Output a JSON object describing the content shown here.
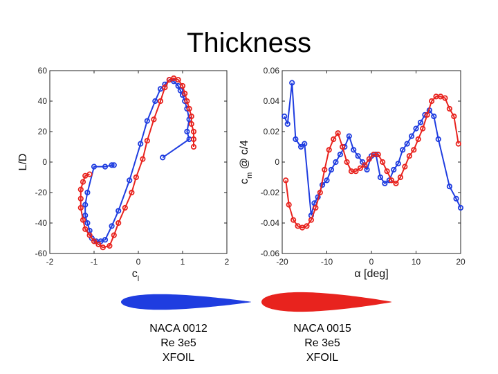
{
  "slide": {
    "title": "Thickness"
  },
  "chart_data": [
    {
      "type": "line",
      "panel": "left",
      "xlabel": "c",
      "xlabel_sub": "l",
      "ylabel": "L/D",
      "xlim": [
        -2,
        2
      ],
      "ylim": [
        -60,
        60
      ],
      "xticks": [
        -2,
        -1,
        0,
        1,
        2
      ],
      "yticks": [
        -60,
        -40,
        -20,
        0,
        20,
        40,
        60
      ],
      "series": [
        {
          "name": "NACA 0012",
          "color": "#1f3de0",
          "x": [
            0.55,
            1.15,
            1.1,
            1.15,
            1.1,
            1.05,
            1.0,
            0.95,
            0.9,
            0.8,
            0.7,
            0.6,
            0.5,
            0.38,
            0.2,
            0.05,
            -0.2,
            -0.45,
            -0.6,
            -0.75,
            -0.85,
            -0.95,
            -1.05,
            -1.1,
            -1.15,
            -1.2,
            -1.2,
            -1.15,
            -1.0,
            -0.75,
            -0.6,
            -0.55
          ],
          "y": [
            3,
            15,
            20,
            28,
            35,
            40,
            44,
            47,
            50,
            53,
            54,
            51,
            48,
            40,
            27,
            12,
            -12,
            -32,
            -42,
            -51,
            -52,
            -52,
            -50,
            -45,
            -40,
            -35,
            -28,
            -20,
            -3,
            -3,
            -2,
            -2
          ]
        },
        {
          "name": "NACA 0015",
          "color": "#e8231e",
          "x": [
            1.25,
            1.25,
            1.25,
            1.2,
            1.2,
            1.15,
            1.1,
            1.05,
            1.0,
            0.9,
            0.8,
            0.7,
            0.6,
            0.5,
            0.35,
            0.2,
            0.1,
            -0.05,
            -0.15,
            -0.3,
            -0.45,
            -0.55,
            -0.65,
            -0.8,
            -0.9,
            -1.0,
            -1.1,
            -1.2,
            -1.25,
            -1.3,
            -1.3,
            -1.3,
            -1.25,
            -1.2,
            -1.1
          ],
          "y": [
            10,
            15,
            20,
            25,
            30,
            35,
            40,
            45,
            50,
            54,
            55,
            54,
            49,
            40,
            28,
            14,
            2,
            -10,
            -20,
            -30,
            -40,
            -48,
            -55,
            -56,
            -54,
            -52,
            -48,
            -44,
            -38,
            -30,
            -24,
            -18,
            -13,
            -9,
            -8
          ]
        }
      ]
    },
    {
      "type": "line",
      "panel": "right",
      "xlabel": "α [deg]",
      "ylabel": "c",
      "ylabel_sub": "m",
      "ylabel_suffix": " @ c/4",
      "xlim": [
        -20,
        20
      ],
      "ylim": [
        -0.06,
        0.06
      ],
      "xticks": [
        -20,
        -10,
        0,
        10,
        20
      ],
      "yticks": [
        -0.06,
        -0.04,
        -0.02,
        0,
        0.02,
        0.04,
        0.06
      ],
      "ytick_labels": [
        "-0.06",
        "-0.04",
        "-0.02",
        "0",
        "0.02",
        "0.04",
        "0.06"
      ],
      "series": [
        {
          "name": "NACA 0012",
          "color": "#1f3de0",
          "x": [
            -19.5,
            -18.8,
            -17.8,
            -17,
            -15.8,
            -15,
            -13.5,
            -12.8,
            -12,
            -11,
            -10,
            -9,
            -8,
            -7,
            -6,
            -5,
            -4,
            -3,
            -2,
            -1,
            0,
            1,
            2,
            3,
            4,
            5,
            6,
            7,
            8,
            9,
            10,
            11,
            12,
            13,
            14,
            15,
            17.5,
            19,
            20
          ],
          "y": [
            0.03,
            0.025,
            0.052,
            0.015,
            0.01,
            0.012,
            -0.035,
            -0.027,
            -0.023,
            -0.015,
            -0.012,
            -0.005,
            0.0,
            0.005,
            0.01,
            0.017,
            0.008,
            0.004,
            0.0,
            -0.005,
            0.004,
            0.005,
            -0.01,
            -0.014,
            -0.012,
            -0.005,
            -0.001,
            0.008,
            0.012,
            0.017,
            0.022,
            0.026,
            0.031,
            0.034,
            0.03,
            0.015,
            -0.016,
            -0.024,
            -0.03
          ]
        },
        {
          "name": "NACA 0015",
          "color": "#e8231e",
          "x": [
            -19.2,
            -18.5,
            -17.5,
            -16.5,
            -15.5,
            -14.5,
            -13.5,
            -12.5,
            -11.5,
            -10.5,
            -9.5,
            -8.5,
            -7.5,
            -6.5,
            -5.5,
            -4.5,
            -3.5,
            -2.5,
            -1.5,
            -0.5,
            0.5,
            1.5,
            2.5,
            3.5,
            4.5,
            5.5,
            6.5,
            7.5,
            8.5,
            9.5,
            10.5,
            11.5,
            12.5,
            13.5,
            14.5,
            15.5,
            16.5,
            17.5,
            18.5,
            19.5
          ],
          "y": [
            -0.012,
            -0.028,
            -0.038,
            -0.042,
            -0.043,
            -0.042,
            -0.038,
            -0.03,
            -0.02,
            -0.005,
            0.008,
            0.015,
            0.019,
            0.01,
            0.0,
            -0.006,
            -0.006,
            -0.004,
            -0.002,
            0.002,
            0.005,
            0.005,
            0.0,
            -0.006,
            -0.012,
            -0.014,
            -0.01,
            -0.003,
            0.004,
            0.008,
            0.015,
            0.022,
            0.031,
            0.04,
            0.043,
            0.043,
            0.042,
            0.035,
            0.03,
            0.012
          ]
        }
      ]
    }
  ],
  "airfoils": [
    {
      "name": "NACA 0012",
      "color": "#1f3de0",
      "thickness": 0.12,
      "caption": [
        "NACA 0012",
        "Re 3e5",
        "XFOIL"
      ]
    },
    {
      "name": "NACA 0015",
      "color": "#e8231e",
      "thickness": 0.15,
      "caption": [
        "NACA 0015",
        "Re 3e5",
        "XFOIL"
      ]
    }
  ]
}
